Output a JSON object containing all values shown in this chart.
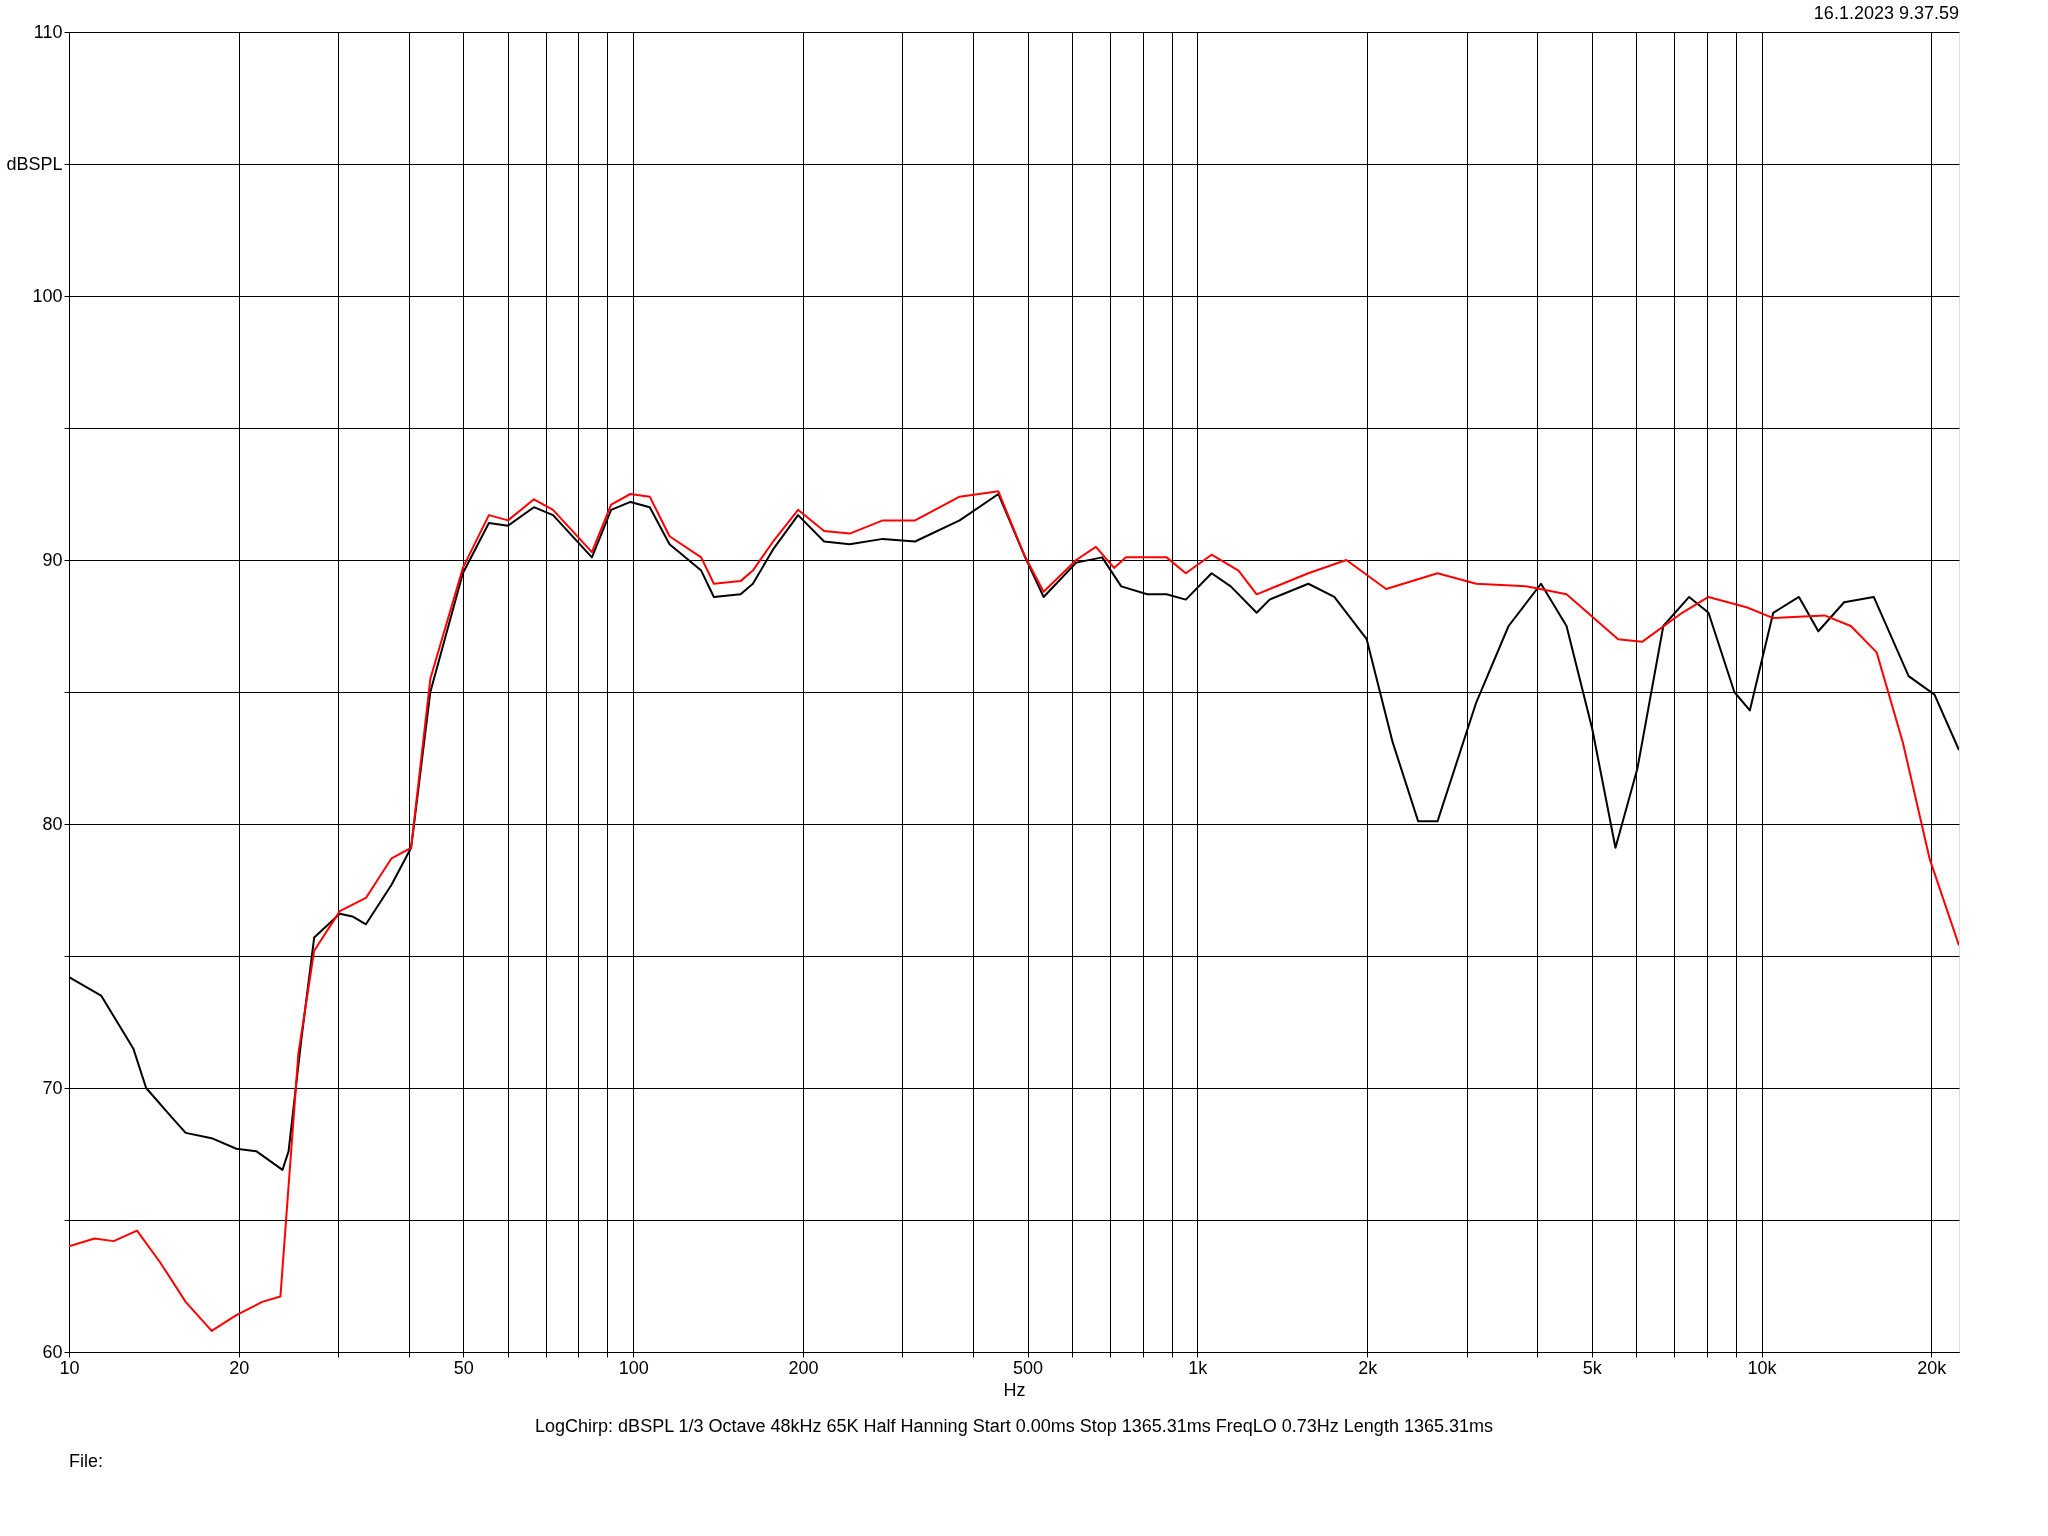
{
  "chart_data": {
    "type": "line",
    "xlabel": "Hz",
    "log": "x",
    "grid": true,
    "legend": false,
    "line_style": "solid",
    "marker": "none",
    "xlim": [
      10,
      22390
    ],
    "ylim": [
      60,
      110
    ],
    "xticks": [
      10,
      {
        "value": 20,
        "label": "20"
      },
      {
        "value": 30,
        "label": null
      },
      {
        "value": 40,
        "label": null
      },
      50,
      {
        "value": 60,
        "label": null
      },
      {
        "value": 70,
        "label": null
      },
      {
        "value": 80,
        "label": null
      },
      {
        "value": 90,
        "label": null
      },
      100,
      200,
      {
        "value": 300,
        "label": null
      },
      {
        "value": 400,
        "label": null
      },
      500,
      {
        "value": 600,
        "label": null
      },
      {
        "value": 700,
        "label": null
      },
      {
        "value": 800,
        "label": null
      },
      {
        "value": 900,
        "label": null
      },
      {
        "value": 1000,
        "label": "1k"
      },
      {
        "value": 2000,
        "label": "2k"
      },
      {
        "value": 3000,
        "label": null
      },
      {
        "value": 4000,
        "label": null
      },
      {
        "value": 5000,
        "label": "5k"
      },
      {
        "value": 6000,
        "label": null
      },
      {
        "value": 7000,
        "label": null
      },
      {
        "value": 8000,
        "label": null
      },
      {
        "value": 9000,
        "label": null
      },
      {
        "value": 10000,
        "label": "10k"
      },
      {
        "value": 20000,
        "label": "20k"
      }
    ],
    "yticks": [
      60,
      {
        "value": 65,
        "label": null
      },
      70,
      {
        "value": 75,
        "label": null
      },
      80,
      {
        "value": 85,
        "label": null
      },
      90,
      {
        "value": 95,
        "label": null
      },
      100,
      {
        "value": 105,
        "label": "dBSPL"
      },
      110
    ],
    "series": [
      {
        "color": "#000000",
        "x": [
          10,
          11.4,
          13.0,
          13.7,
          15.2,
          16.1,
          17.9,
          19.8,
          21.5,
          23.9,
          24.5,
          25.8,
          27.2,
          30.2,
          31.8,
          33.6,
          37.3,
          40.4,
          43.7,
          49.9,
          55.5,
          60,
          66.7,
          72.1,
          84.5,
          91.4,
          98.9,
          107,
          116,
          132,
          139,
          155,
          163,
          177,
          196,
          218,
          242,
          277,
          316,
          379,
          444,
          493,
          534,
          610,
          678,
          733,
          815,
          882,
          954,
          1060,
          1146,
          1274,
          1343,
          1573,
          1749,
          1996,
          2219,
          2463,
          2665,
          3121,
          3562,
          4066,
          4512,
          5012,
          5510,
          6026,
          6698,
          7443,
          8055,
          8950,
          9534,
          10490,
          11650,
          12610,
          14010,
          15810,
          18230,
          20260,
          22390
        ],
        "values": [
          74.2,
          73.5,
          71.5,
          70.0,
          68.9,
          68.3,
          68.1,
          67.7,
          67.6,
          66.9,
          67.6,
          71.8,
          75.7,
          76.6,
          76.5,
          76.2,
          77.7,
          79.1,
          85.0,
          89.5,
          91.4,
          91.3,
          92.0,
          91.7,
          90.1,
          91.9,
          92.2,
          92.0,
          90.6,
          89.6,
          88.6,
          88.7,
          89.1,
          90.4,
          91.7,
          90.7,
          90.6,
          90.8,
          90.7,
          91.5,
          92.5,
          90.2,
          88.6,
          89.9,
          90.1,
          89.0,
          88.7,
          88.7,
          88.5,
          89.5,
          89.0,
          88.0,
          88.5,
          89.1,
          88.6,
          87.0,
          83.1,
          80.1,
          80.1,
          84.6,
          87.5,
          89.1,
          87.5,
          83.6,
          79.1,
          82.1,
          87.5,
          88.6,
          88.0,
          85.0,
          84.3,
          88.0,
          88.6,
          87.3,
          88.4,
          88.6,
          85.6,
          84.9,
          82.8
        ]
      },
      {
        "color": "#ff0000",
        "x": [
          10,
          11.1,
          12.0,
          13.2,
          14.5,
          16.1,
          17.9,
          19.8,
          22.0,
          23.7,
          25.5,
          27.2,
          30.2,
          33.6,
          37.3,
          40.4,
          43.7,
          49.9,
          55.5,
          60,
          66.7,
          72.1,
          84.5,
          91.4,
          98.9,
          107,
          116,
          132,
          139,
          155,
          163,
          177,
          196,
          218,
          242,
          277,
          316,
          379,
          444,
          493,
          534,
          610,
          661,
          712,
          747,
          882,
          954,
          1060,
          1183,
          1274,
          1573,
          1837,
          2161,
          2665,
          3121,
          3848,
          4512,
          5570,
          6142,
          7235,
          8055,
          9434,
          10490,
          12930,
          14400,
          16000,
          17800,
          19850,
          22390
        ],
        "values": [
          64.0,
          64.3,
          64.2,
          64.6,
          63.4,
          61.9,
          60.8,
          61.4,
          61.9,
          62.1,
          71.3,
          75.2,
          76.7,
          77.2,
          78.7,
          79.1,
          85.5,
          89.7,
          91.7,
          91.5,
          92.3,
          91.9,
          90.3,
          92.1,
          92.5,
          92.4,
          90.9,
          90.1,
          89.1,
          89.2,
          89.6,
          90.7,
          91.9,
          91.1,
          91.0,
          91.5,
          91.5,
          92.4,
          92.6,
          90.2,
          88.8,
          90.0,
          90.5,
          89.7,
          90.1,
          90.1,
          89.5,
          90.2,
          89.6,
          88.7,
          89.5,
          90.0,
          88.9,
          89.5,
          89.1,
          89.0,
          88.7,
          87.0,
          86.9,
          88.0,
          88.6,
          88.2,
          87.8,
          87.9,
          87.5,
          86.5,
          83.1,
          78.7,
          75.4
        ]
      }
    ],
    "annotations": [
      "16.1.2023 9.37.59",
      "LogChirp:  dBSPL   1/3 Octave   48kHz   65K   Half Hanning   Start 0.00ms   Stop 1365.31ms   FreqLO 0.73Hz   Length 1365.31ms",
      "File:"
    ]
  }
}
